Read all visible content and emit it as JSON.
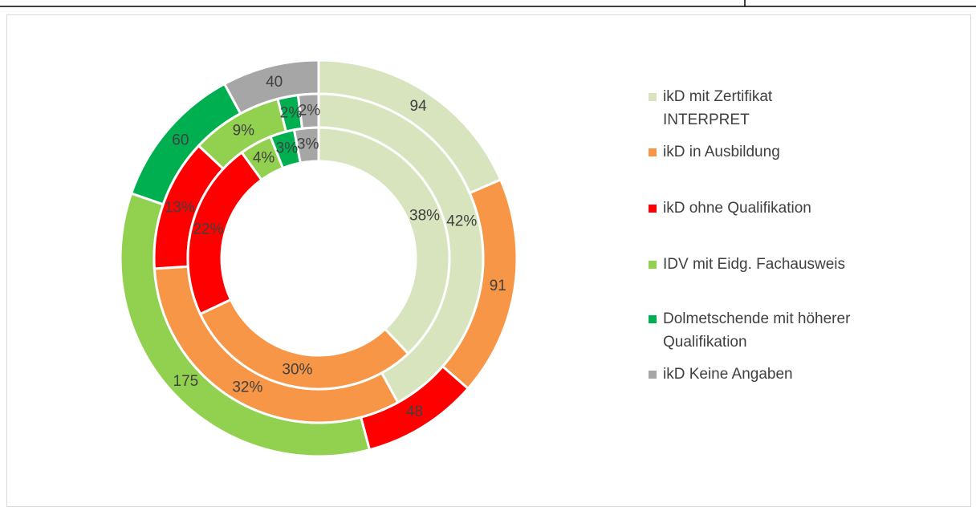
{
  "chart_data": {
    "type": "donut",
    "categories": [
      "ikD mit Zertifikat INTERPRET",
      "ikD in Ausbildung",
      "ikD ohne Qualifikation",
      "IDV mit Eidg. Fachausweis",
      "Dolmetschende mit höherer Qualifikation",
      "ikD Keine Angaben"
    ],
    "colors": [
      "#d7e4bd",
      "#f79646",
      "#ff0000",
      "#92d050",
      "#00b050",
      "#a6a6a6"
    ],
    "series": [
      {
        "values": [
          94,
          91,
          48,
          175,
          60,
          40
        ]
      },
      {
        "values": [
          42,
          32,
          13,
          9,
          2,
          2
        ],
        "value_labels": [
          "42%",
          "32%",
          "13%",
          "9%",
          "2%",
          "2%"
        ]
      },
      {
        "values": [
          38,
          30,
          22,
          4,
          3,
          3
        ],
        "value_labels": [
          "38%",
          "30%",
          "22%",
          "4%",
          "3%",
          "3%"
        ]
      }
    ],
    "legend": "right"
  }
}
